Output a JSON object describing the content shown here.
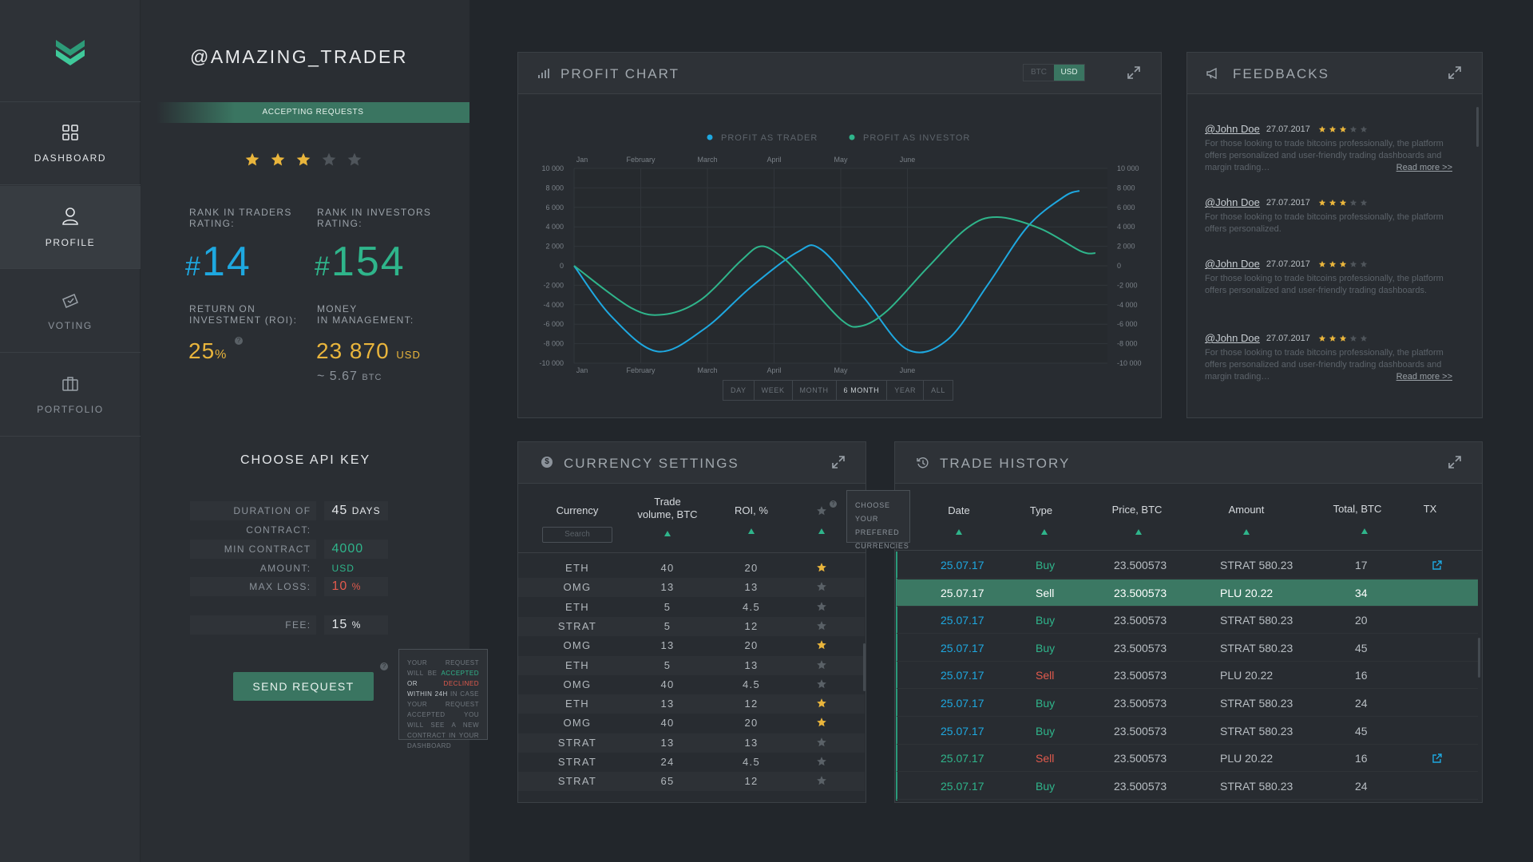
{
  "nav": {
    "items": [
      {
        "label": "DASHBOARD",
        "icon": "grid-icon"
      },
      {
        "label": "PROFILE",
        "icon": "user-icon"
      },
      {
        "label": "VOTING",
        "icon": "ballot-icon"
      },
      {
        "label": "PORTFOLIO",
        "icon": "briefcase-icon"
      }
    ]
  },
  "profile": {
    "username": "@AMAZING_TRADER",
    "status": "ACCEPTING REQUESTS",
    "rating_stars": 3,
    "rating_max": 5,
    "rank_traders_label_1": "RANK IN TRADERS",
    "rank_traders_label_2": "RATING:",
    "rank_investors_label_1": "RANK IN INVESTORS",
    "rank_investors_label_2": "RATING:",
    "hash": "#",
    "rank_traders": "14",
    "rank_investors": "154",
    "roi_label_1": "RETURN ON",
    "roi_label_2": "INVESTMENT (ROI):",
    "roi_value": "25",
    "roi_unit": "%",
    "money_label_1": "MONEY",
    "money_label_2": "IN MANAGEMENT:",
    "money_value": "23 870",
    "money_unit": "USD",
    "btc_value": "~ 5.67",
    "btc_unit": "BTC"
  },
  "api": {
    "title": "CHOOSE API KEY",
    "duration_label": "DURATION OF CONTRACT:",
    "duration_value": "45",
    "duration_unit": "DAYS",
    "min_label": "MIN CONTRACT AMOUNT:",
    "min_value": "4000",
    "min_unit": "USD",
    "maxloss_label": "MAX LOSS:",
    "maxloss_value": "10",
    "maxloss_unit": "%",
    "fee_label": "FEE:",
    "fee_value": "15",
    "fee_unit": "%",
    "send_label": "SEND REQUEST",
    "tip_1": "YOUR REQUEST WILL BE",
    "tip_accepted": "ACCEPTED",
    "tip_or": "OR",
    "tip_declined": "DECLINED",
    "tip_2": "WITHIN 24H",
    "tip_3": "IN CASE YOUR REQUEST ACCEPTED YOU WILL SEE A NEW CONTRACT IN YOUR DASHBOARD"
  },
  "colors": {
    "accent": "#2fb58b",
    "blue": "#1ea8e0",
    "gold": "#e9b53c",
    "red": "#e25a4d",
    "selected_row": "#3b7863"
  },
  "profit_chart": {
    "title": "PROFIT CHART",
    "currency_options": [
      "BTC",
      "USD"
    ],
    "active_currency": "USD",
    "ranges": [
      "DAY",
      "WEEK",
      "MONTH",
      "6 MONTH",
      "YEAR",
      "ALL"
    ],
    "active_range": "6 MONTH"
  },
  "chart_data": {
    "type": "line",
    "x": [
      "Jan",
      "February",
      "March",
      "April",
      "May",
      "June"
    ],
    "ylim": [
      -10000,
      10000
    ],
    "yticks": [
      "10 000",
      "8 000",
      "6 000",
      "4 000",
      "2 000",
      "0",
      "-2 000",
      "-4 000",
      "-6 000",
      "-8 000",
      "-10 000"
    ],
    "legend_position": "top-center",
    "grid": true,
    "series": [
      {
        "name": "PROFIT AS TRADER",
        "color": "#1ea8e0",
        "points": [
          [
            0,
            0
          ],
          [
            0.56,
            -5200
          ],
          [
            1.25,
            -8800
          ],
          [
            1.95,
            -6500
          ],
          [
            2.65,
            -2200
          ],
          [
            3.35,
            1400
          ],
          [
            3.7,
            1700
          ],
          [
            4.35,
            -3300
          ],
          [
            5,
            -8600
          ],
          [
            5.6,
            -7600
          ],
          [
            6.2,
            -2000
          ],
          [
            6.8,
            4000
          ],
          [
            7.35,
            7100
          ],
          [
            7.58,
            7700
          ]
        ]
      },
      {
        "name": "PROFIT AS INVESTOR",
        "color": "#2fb58b",
        "points": [
          [
            0,
            0
          ],
          [
            0.85,
            -4300
          ],
          [
            1.35,
            -5000
          ],
          [
            1.9,
            -3500
          ],
          [
            2.5,
            500
          ],
          [
            2.8,
            2000
          ],
          [
            3.1,
            1000
          ],
          [
            3.4,
            -1000
          ],
          [
            4.0,
            -5500
          ],
          [
            4.3,
            -6200
          ],
          [
            4.7,
            -4600
          ],
          [
            5.3,
            -200
          ],
          [
            5.9,
            3900
          ],
          [
            6.35,
            5000
          ],
          [
            7.0,
            3800
          ],
          [
            7.6,
            1500
          ],
          [
            7.82,
            1300
          ]
        ]
      }
    ]
  },
  "feedbacks": {
    "title": "FEEDBACKS",
    "items": [
      {
        "user": "@John Doe",
        "date": "27.07.2017",
        "stars": 3,
        "text": "For those looking to trade bitcoins professionally, the platform offers personalized and user-friendly trading dashboards and margin trading…",
        "more": "Read more >>"
      },
      {
        "user": "@John Doe",
        "date": "27.07.2017",
        "stars": 3,
        "text": "For those looking to trade bitcoins professionally, the platform offers personalized.",
        "more": ""
      },
      {
        "user": "@John Doe",
        "date": "27.07.2017",
        "stars": 3,
        "text": "For those looking to trade bitcoins professionally, the platform offers personalized and user-friendly trading dashboards.",
        "more": ""
      },
      {
        "user": "@John Doe",
        "date": "27.07.2017",
        "stars": 3,
        "text": "For those looking to trade bitcoins professionally, the platform offers personalized and user-friendly trading dashboards and margin trading…",
        "more": "Read more >>"
      }
    ]
  },
  "currency": {
    "title": "CURRENCY SETTINGS",
    "col_currency": "Currency",
    "col_volume_1": "Trade",
    "col_volume_2": "volume, BTC",
    "col_roi": "ROI, %",
    "search_placeholder": "Search",
    "tip_1": "CHOOSE YOUR",
    "tip_2": "PREFERED",
    "tip_3": "CURRENCIES",
    "rows": [
      {
        "c": "ETH",
        "v": "40",
        "r": "20",
        "fav": true
      },
      {
        "c": "OMG",
        "v": "13",
        "r": "13",
        "fav": false
      },
      {
        "c": "ETH",
        "v": "5",
        "r": "4.5",
        "fav": false
      },
      {
        "c": "STRAT",
        "v": "5",
        "r": "12",
        "fav": false
      },
      {
        "c": "OMG",
        "v": "13",
        "r": "20",
        "fav": true
      },
      {
        "c": "ETH",
        "v": "5",
        "r": "13",
        "fav": false
      },
      {
        "c": "OMG",
        "v": "40",
        "r": "4.5",
        "fav": false
      },
      {
        "c": "ETH",
        "v": "13",
        "r": "12",
        "fav": true
      },
      {
        "c": "OMG",
        "v": "40",
        "r": "20",
        "fav": true
      },
      {
        "c": "STRAT",
        "v": "13",
        "r": "13",
        "fav": false
      },
      {
        "c": "STRAT",
        "v": "24",
        "r": "4.5",
        "fav": false
      },
      {
        "c": "STRAT",
        "v": "65",
        "r": "12",
        "fav": false
      }
    ]
  },
  "history": {
    "title": "TRADE HISTORY",
    "col_date": "Date",
    "col_type": "Type",
    "col_price": "Price, BTC",
    "col_amount": "Amount",
    "col_total": "Total, BTC",
    "col_tx": "TX",
    "rows": [
      {
        "date": "25.07.17",
        "type": "Buy",
        "price": "23.500573",
        "amount": "STRAT 580.23",
        "total": "17",
        "tx": true
      },
      {
        "date": "25.07.17",
        "type": "Sell",
        "price": "23.500573",
        "amount": "PLU 20.22",
        "total": "34",
        "tx": false,
        "selected": true
      },
      {
        "date": "25.07.17",
        "type": "Buy",
        "price": "23.500573",
        "amount": "STRAT 580.23",
        "total": "20",
        "tx": false
      },
      {
        "date": "25.07.17",
        "type": "Buy",
        "price": "23.500573",
        "amount": "STRAT 580.23",
        "total": "45",
        "tx": false
      },
      {
        "date": "25.07.17",
        "type": "Sell",
        "price": "23.500573",
        "amount": "PLU 20.22",
        "total": "16",
        "tx": false
      },
      {
        "date": "25.07.17",
        "type": "Buy",
        "price": "23.500573",
        "amount": "STRAT 580.23",
        "total": "24",
        "tx": false
      },
      {
        "date": "25.07.17",
        "type": "Buy",
        "price": "23.500573",
        "amount": "STRAT 580.23",
        "total": "45",
        "tx": false
      },
      {
        "date": "25.07.17",
        "type": "Sell",
        "price": "23.500573",
        "amount": "PLU 20.22",
        "total": "16",
        "tx": true
      },
      {
        "date": "25.07.17",
        "type": "Buy",
        "price": "23.500573",
        "amount": "STRAT 580.23",
        "total": "24",
        "tx": false
      }
    ]
  }
}
